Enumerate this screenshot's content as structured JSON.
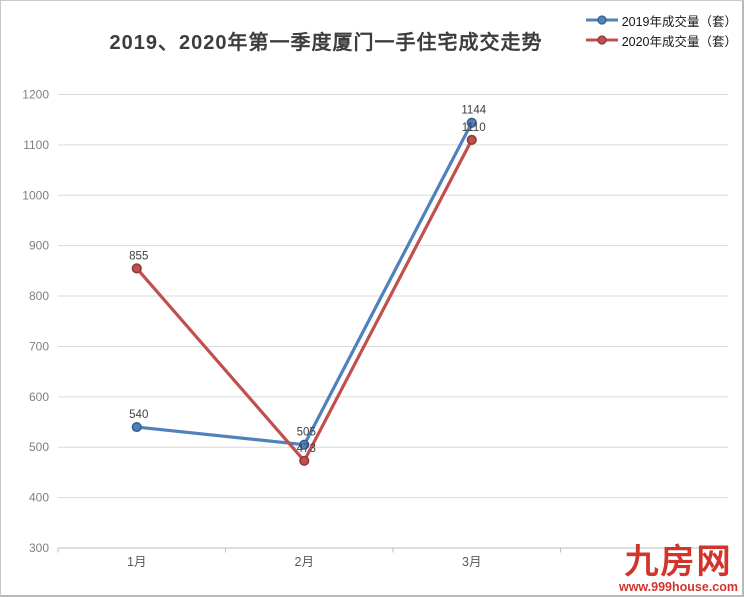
{
  "page": {
    "background": "#ffffff",
    "border_color": "#c9c9c9"
  },
  "chart_data": {
    "type": "line",
    "title": "2019、2020年第一季度厦门一手住宅成交走势",
    "categories": [
      "1月",
      "2月",
      "3月"
    ],
    "x_slots": 4,
    "series": [
      {
        "name": "2019年成交量（套）",
        "color": "#4F81BD",
        "marker_color": "#39618F",
        "values": [
          540,
          505,
          1144
        ]
      },
      {
        "name": "2020年成交量（套）",
        "color": "#C0504D",
        "marker_color": "#8E3B38",
        "values": [
          855,
          473,
          1110
        ]
      }
    ],
    "ylim": [
      300,
      1200
    ],
    "ytick_step": 100,
    "grid": true,
    "legend_position": "top-right",
    "data_labels": true,
    "xlabel": "",
    "ylabel": "",
    "axis_colors": {
      "grid": "#d9d9d9",
      "axis": "#bfbfbf",
      "tick_label": "#808080",
      "x_label": "#595959",
      "data_label": "#3f3f3f"
    }
  },
  "branding": {
    "logo_text": "九房网",
    "website": "www.999house.com",
    "color": "#D2342C"
  }
}
